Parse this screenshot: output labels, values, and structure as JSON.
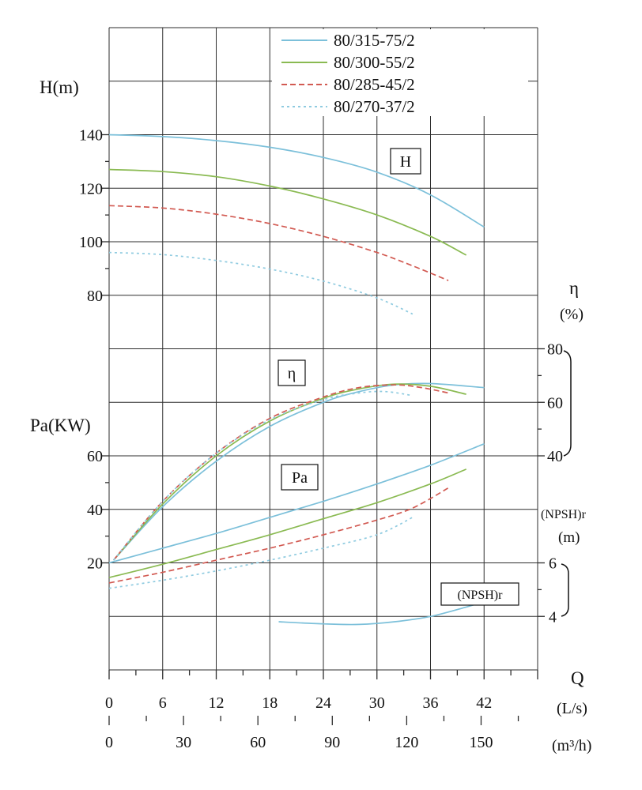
{
  "labels": {
    "h_axis": "H(m)",
    "pa_axis": "Pa(KW)",
    "eta_symbol": "η",
    "eta_unit": "(%)",
    "npsh_axis": "(NPSH)r",
    "npsh_unit": "(m)",
    "q_symbol": "Q",
    "q_unit_ls": "(L/s)",
    "q_unit_m3h": "(m³/h)"
  },
  "curve_tags": {
    "h": "H",
    "eta": "η",
    "pa": "Pa",
    "npsh": "(NPSH)r"
  },
  "colors": {
    "model_315": "#7cc0da",
    "model_300": "#8aba52",
    "model_285": "#d25a52",
    "model_270": "#8fcbe0",
    "grid": "#2e2e2e",
    "text": "#111111"
  },
  "legend": [
    {
      "model": "80/315-75/2",
      "color_key": "model_315",
      "dash": ""
    },
    {
      "model": "80/300-55/2",
      "color_key": "model_300",
      "dash": ""
    },
    {
      "model": "80/285-45/2",
      "color_key": "model_285",
      "dash": "7 4"
    },
    {
      "model": "80/270-37/2",
      "color_key": "model_270",
      "dash": "3 4"
    }
  ],
  "chart_data": {
    "type": "line",
    "x_axis": {
      "label": "Q",
      "primary_units": "L/s",
      "secondary_units": "m³/h",
      "ticks_ls": [
        0,
        6,
        12,
        18,
        24,
        30,
        36,
        42
      ],
      "ticks_m3h": [
        0,
        30,
        60,
        90,
        120,
        150
      ],
      "range_ls": [
        0,
        48
      ]
    },
    "y_axes": {
      "H": {
        "label": "H(m)",
        "ticks": [
          80,
          100,
          120,
          140
        ],
        "range": [
          80,
          140
        ]
      },
      "Pa": {
        "label": "Pa(KW)",
        "ticks": [
          20,
          40,
          60
        ],
        "range": [
          20,
          60
        ]
      },
      "eta": {
        "label": "η(%)",
        "ticks": [
          40,
          60,
          80
        ],
        "range": [
          40,
          80
        ]
      },
      "NPSH": {
        "label": "(NPSH)r (m)",
        "ticks": [
          4,
          6
        ],
        "range": [
          4,
          6
        ]
      }
    },
    "grid": true,
    "legend_position": "top-right",
    "series": [
      {
        "id": "H-315",
        "family": "H",
        "model": "80/315-75/2",
        "color_key": "model_315",
        "dash": "",
        "points": [
          [
            0,
            140
          ],
          [
            6,
            139.3
          ],
          [
            12,
            137.8
          ],
          [
            18,
            135.3
          ],
          [
            24,
            131.5
          ],
          [
            30,
            126
          ],
          [
            36,
            117.5
          ],
          [
            42,
            105.5
          ]
        ]
      },
      {
        "id": "H-300",
        "family": "H",
        "model": "80/300-55/2",
        "color_key": "model_300",
        "dash": "",
        "points": [
          [
            0,
            127
          ],
          [
            6,
            126.2
          ],
          [
            12,
            124.3
          ],
          [
            18,
            120.8
          ],
          [
            24,
            116
          ],
          [
            30,
            110
          ],
          [
            36,
            102
          ],
          [
            40,
            95
          ]
        ]
      },
      {
        "id": "H-285",
        "family": "H",
        "model": "80/285-45/2",
        "color_key": "model_285",
        "dash": "7 4",
        "points": [
          [
            0,
            113.5
          ],
          [
            6,
            112.6
          ],
          [
            12,
            110.3
          ],
          [
            18,
            106.8
          ],
          [
            24,
            102
          ],
          [
            30,
            96
          ],
          [
            34,
            91
          ],
          [
            38,
            85.5
          ]
        ]
      },
      {
        "id": "H-270",
        "family": "H",
        "model": "80/270-37/2",
        "color_key": "model_270",
        "dash": "3 4",
        "points": [
          [
            0,
            96
          ],
          [
            6,
            95.2
          ],
          [
            12,
            93
          ],
          [
            18,
            89.8
          ],
          [
            24,
            85.3
          ],
          [
            30,
            79
          ],
          [
            34,
            73
          ]
        ]
      },
      {
        "id": "eta-315",
        "family": "eta",
        "model": "80/315-75/2",
        "color_key": "model_315",
        "dash": "",
        "points": [
          [
            0.5,
            1
          ],
          [
            6,
            21
          ],
          [
            12,
            38
          ],
          [
            18,
            51
          ],
          [
            24,
            60
          ],
          [
            28,
            64
          ],
          [
            32,
            66.5
          ],
          [
            36,
            67
          ],
          [
            42,
            65.5
          ]
        ]
      },
      {
        "id": "eta-300",
        "family": "eta",
        "model": "80/300-55/2",
        "color_key": "model_300",
        "dash": "",
        "points": [
          [
            0.5,
            1
          ],
          [
            6,
            22
          ],
          [
            12,
            40
          ],
          [
            18,
            53
          ],
          [
            24,
            61.5
          ],
          [
            28,
            65
          ],
          [
            32,
            66.8
          ],
          [
            36,
            66
          ],
          [
            40,
            63
          ]
        ]
      },
      {
        "id": "eta-285",
        "family": "eta",
        "model": "80/285-45/2",
        "color_key": "model_285",
        "dash": "7 4",
        "points": [
          [
            0.5,
            1
          ],
          [
            6,
            23
          ],
          [
            12,
            41
          ],
          [
            18,
            54
          ],
          [
            24,
            62
          ],
          [
            28,
            65.5
          ],
          [
            32,
            66.5
          ],
          [
            35,
            65.5
          ],
          [
            38,
            63.5
          ]
        ]
      },
      {
        "id": "eta-270",
        "family": "eta",
        "model": "80/270-37/2",
        "color_key": "model_270",
        "dash": "3 4",
        "points": [
          [
            0.5,
            1
          ],
          [
            6,
            23
          ],
          [
            12,
            41
          ],
          [
            18,
            53.5
          ],
          [
            24,
            61
          ],
          [
            28,
            63.5
          ],
          [
            31,
            64
          ],
          [
            34,
            62.5
          ]
        ]
      },
      {
        "id": "Pa-315",
        "family": "Pa",
        "model": "80/315-75/2",
        "color_key": "model_315",
        "dash": "",
        "points": [
          [
            0,
            20
          ],
          [
            6,
            25.5
          ],
          [
            12,
            31
          ],
          [
            18,
            37
          ],
          [
            24,
            43
          ],
          [
            30,
            49.5
          ],
          [
            36,
            56.5
          ],
          [
            42,
            64.5
          ]
        ]
      },
      {
        "id": "Pa-300",
        "family": "Pa",
        "model": "80/300-55/2",
        "color_key": "model_300",
        "dash": "",
        "points": [
          [
            0,
            14.5
          ],
          [
            6,
            19.5
          ],
          [
            12,
            25
          ],
          [
            18,
            30.5
          ],
          [
            24,
            36.5
          ],
          [
            30,
            42.5
          ],
          [
            36,
            49.5
          ],
          [
            40,
            55
          ]
        ]
      },
      {
        "id": "Pa-285",
        "family": "Pa",
        "model": "80/285-45/2",
        "color_key": "model_285",
        "dash": "7 4",
        "points": [
          [
            0,
            12.5
          ],
          [
            6,
            16.5
          ],
          [
            12,
            21
          ],
          [
            18,
            25.5
          ],
          [
            24,
            30.5
          ],
          [
            30,
            36
          ],
          [
            34,
            40.5
          ],
          [
            38,
            48
          ]
        ]
      },
      {
        "id": "Pa-270",
        "family": "Pa",
        "model": "80/270-37/2",
        "color_key": "model_270",
        "dash": "3 4",
        "points": [
          [
            0,
            10.5
          ],
          [
            6,
            13.5
          ],
          [
            12,
            17
          ],
          [
            18,
            21
          ],
          [
            24,
            25.5
          ],
          [
            30,
            30.5
          ],
          [
            34,
            37
          ]
        ]
      },
      {
        "id": "NPSH-315",
        "family": "NPSH",
        "model": "80/315-75/2",
        "color_key": "model_315",
        "dash": "",
        "points": [
          [
            19,
            3.8
          ],
          [
            24,
            3.72
          ],
          [
            28,
            3.7
          ],
          [
            32,
            3.8
          ],
          [
            36,
            4.0
          ],
          [
            40,
            4.35
          ],
          [
            42,
            4.55
          ]
        ]
      }
    ]
  }
}
